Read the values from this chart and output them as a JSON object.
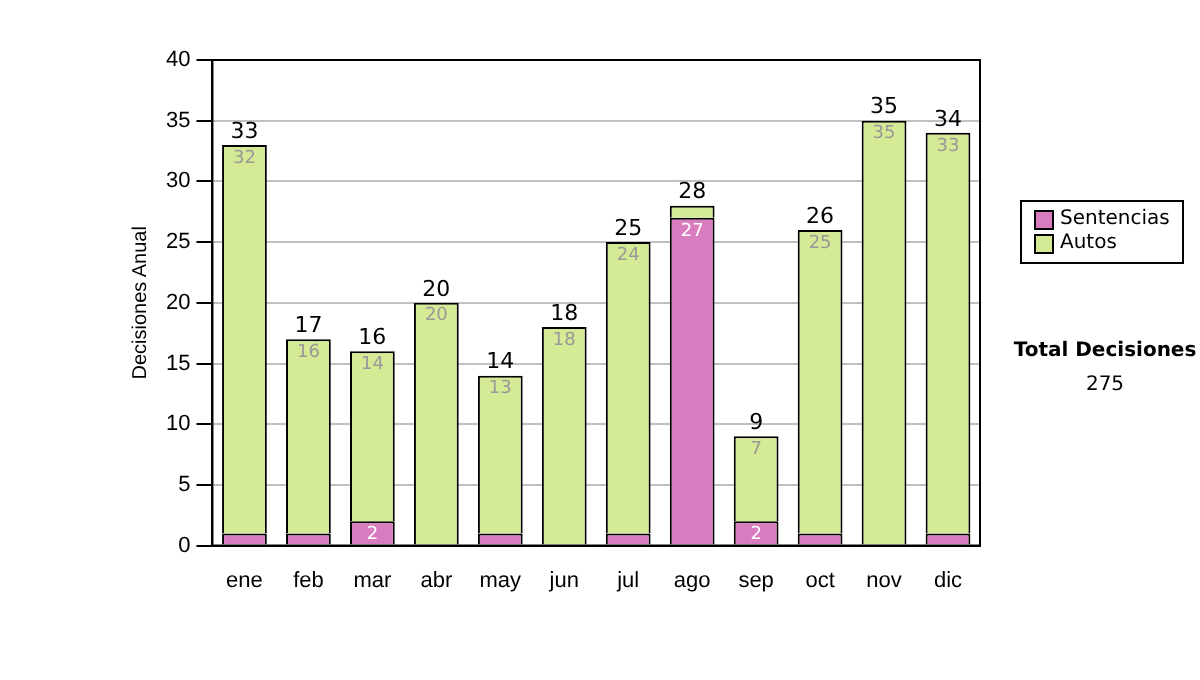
{
  "chart_data": {
    "type": "bar",
    "stacked": true,
    "ylabel": "Decisiones Anual",
    "categories": [
      "ene",
      "feb",
      "mar",
      "abr",
      "may",
      "jun",
      "jul",
      "ago",
      "sep",
      "oct",
      "nov",
      "dic"
    ],
    "series": [
      {
        "name": "Sentencias",
        "color": "#d97bbf",
        "values": [
          1,
          1,
          2,
          0,
          1,
          0,
          1,
          27,
          2,
          1,
          0,
          1
        ],
        "value_labels": [
          null,
          null,
          "2",
          null,
          null,
          null,
          null,
          "27",
          "2",
          null,
          null,
          null
        ]
      },
      {
        "name": "Autos",
        "color": "#d4ea94",
        "values": [
          32,
          16,
          14,
          20,
          13,
          18,
          24,
          1,
          7,
          25,
          35,
          33
        ],
        "value_labels": [
          "32",
          "16",
          "14",
          "20",
          "13",
          "18",
          "24",
          null,
          "7",
          "25",
          "35",
          "33"
        ]
      }
    ],
    "totals": [
      "33",
      "17",
      "16",
      "20",
      "14",
      "18",
      "25",
      "28",
      "9",
      "26",
      "35",
      "34"
    ],
    "ylim": [
      0,
      40
    ],
    "yticks": [
      0,
      5,
      10,
      15,
      20,
      25,
      30,
      35,
      40
    ],
    "grid": "y",
    "legend": "right",
    "annotations": [
      "Total Decisiones",
      "275"
    ]
  }
}
